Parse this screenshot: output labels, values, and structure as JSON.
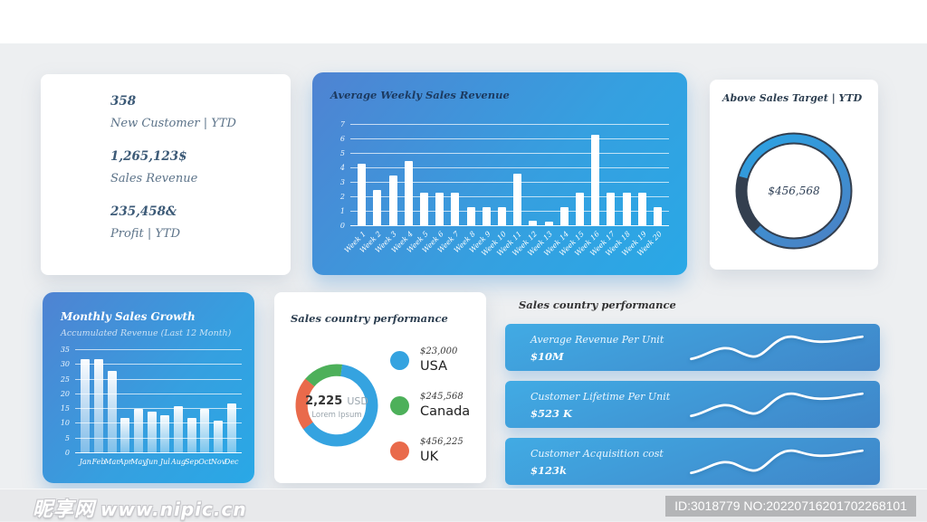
{
  "kpi_card": {
    "items": [
      {
        "value": "358",
        "label": "New Customer | YTD"
      },
      {
        "value": "1,265,123$",
        "label": "Sales Revenue"
      },
      {
        "value": "235,458&",
        "label": "Profit | YTD"
      }
    ]
  },
  "performance_section": {
    "title": "Sales country performance"
  },
  "watermark": {
    "site_name": "昵享网",
    "site_url": "www.nipic.cn",
    "id_text": "ID:3018779 NO:20220716201702268101"
  },
  "colors": {
    "card_blue_start": "#4f83d2",
    "card_blue_end": "#29a8e6",
    "bar_white": "#ffffff",
    "donut_track_dark": "#333f4f"
  },
  "chart_data": [
    {
      "id": "weekly_revenue",
      "type": "bar",
      "title": "Average Weekly Sales Revenue",
      "categories": [
        "Week 1",
        "Week 2",
        "Week 3",
        "Week 4",
        "Week 5",
        "Week 6",
        "Week 7",
        "Week 8",
        "Week 9",
        "Week 10",
        "Week 11",
        "Week 12",
        "Week 13",
        "Week 14",
        "Week 15",
        "Week 16",
        "Week 17",
        "Week 18",
        "Week 19",
        "Week 20"
      ],
      "values": [
        4.3,
        2.5,
        3.5,
        4.5,
        2.3,
        2.3,
        2.3,
        1.3,
        1.3,
        1.3,
        3.6,
        0.4,
        0.3,
        1.3,
        2.3,
        6.3,
        2.3,
        2.3,
        2.3,
        1.3
      ],
      "ylim": [
        0,
        7
      ],
      "yticks": [
        0,
        1,
        2,
        3,
        4,
        5,
        6,
        7
      ],
      "grid": true,
      "bar_color": "#ffffff",
      "legend_position": "none"
    },
    {
      "id": "sales_target",
      "type": "donut",
      "title": "Above Sales Target | YTD",
      "center_label": "$456,568",
      "progress_percent": 83,
      "start_angle_deg": 285,
      "track_color": "#333f4f",
      "arc_gradient": [
        "#4d7fc2",
        "#2aa3e4"
      ]
    },
    {
      "id": "monthly_growth",
      "type": "bar",
      "title": "Monthly Sales Growth",
      "subtitle": "Accumulated Revenue (Last 12 Month)",
      "categories": [
        "Jan",
        "Feb",
        "Mar",
        "Apr",
        "May",
        "Jun",
        "Jul",
        "Aug",
        "Sep",
        "Oct",
        "Nov",
        "Dec"
      ],
      "values": [
        32,
        32,
        28,
        12,
        15,
        14,
        13,
        16,
        12,
        15,
        11,
        17
      ],
      "ylim": [
        0,
        35
      ],
      "yticks": [
        0,
        5,
        10,
        15,
        20,
        25,
        30,
        35
      ],
      "grid": true,
      "bar_color": "#ffffff",
      "legend_position": "none"
    },
    {
      "id": "country_share",
      "type": "donut",
      "title": "Sales country performance",
      "center_value": "2,225",
      "center_unit": "USD",
      "center_caption": "Lorem Ipsum",
      "start_angle_deg": -50,
      "draw_order": [
        1,
        0,
        2
      ],
      "segments": [
        {
          "label": "USA",
          "value": "$23,000",
          "percent": 63,
          "color": "#35a3e0"
        },
        {
          "label": "Canada",
          "value": "$245,568",
          "percent": 16,
          "color": "#4db05a"
        },
        {
          "label": "UK",
          "value": "$456,225",
          "percent": 21,
          "color": "#e96a4b"
        }
      ]
    },
    {
      "id": "unit_metrics",
      "type": "line",
      "rows": [
        {
          "label": "Average Revenue Per Unit",
          "value": "$10M"
        },
        {
          "label": "Customer Lifetime Per Unit",
          "value": "$523 K"
        },
        {
          "label": "Customer Acquisition cost",
          "value": "$123k"
        }
      ]
    }
  ]
}
